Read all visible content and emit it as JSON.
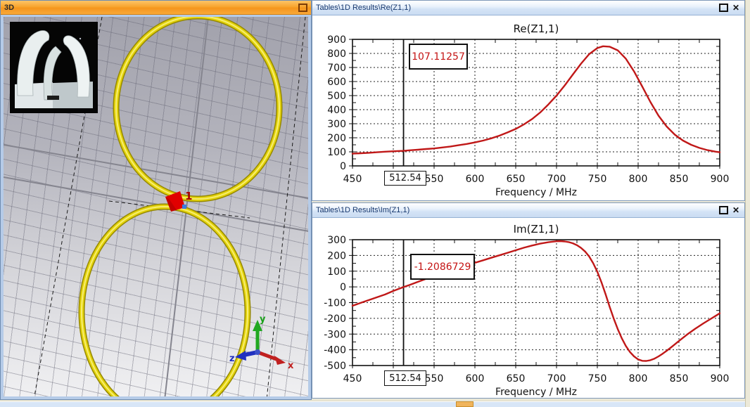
{
  "app": {
    "background_color": "#ece9d8"
  },
  "windows": {
    "viewport": {
      "title": "3D",
      "feed_port_label": "1",
      "axis_triad": {
        "x_label": "x",
        "y_label": "y",
        "z_label": "z"
      },
      "loop_color": "#e3d20a",
      "port_color": "#e00000"
    },
    "re_panel": {
      "title": "Tables\\1D Results\\Re(Z1,1)",
      "close_glyph": "✕"
    },
    "im_panel": {
      "title": "Tables\\1D Results\\Im(Z1,1)",
      "close_glyph": "✕"
    }
  },
  "chart_data": [
    {
      "type": "line",
      "title": "Re(Z1,1)",
      "xlabel": "Frequency / MHz",
      "xlim": [
        450,
        900
      ],
      "ylim": [
        0,
        900
      ],
      "x_ticks": [
        450,
        500,
        550,
        600,
        650,
        700,
        750,
        800,
        850,
        900
      ],
      "x_tick_labels": [
        "450",
        "",
        "550",
        "600",
        "650",
        "700",
        "750",
        "800",
        "850",
        "900"
      ],
      "x_minor_step": 25,
      "y_ticks": [
        0,
        100,
        200,
        300,
        400,
        500,
        600,
        700,
        800,
        900
      ],
      "y_minor_step": 50,
      "grid": true,
      "legend": "none",
      "marker": {
        "x": 512.54,
        "x_label": "512.54",
        "value_label": "107.11257"
      },
      "series": [
        {
          "name": "Re(Z1,1)",
          "color": "#c01818",
          "x": [
            450,
            460,
            470,
            480,
            490,
            500,
            512.54,
            520,
            530,
            540,
            550,
            560,
            570,
            580,
            590,
            600,
            610,
            620,
            630,
            640,
            650,
            660,
            670,
            680,
            690,
            700,
            710,
            720,
            730,
            740,
            750,
            757,
            765,
            775,
            785,
            795,
            805,
            815,
            825,
            835,
            845,
            855,
            865,
            875,
            885,
            895,
            900
          ],
          "y": [
            87,
            90,
            93,
            97,
            101,
            104,
            107.11,
            111,
            115,
            120,
            124,
            131,
            138,
            147,
            156,
            167,
            180,
            196,
            215,
            238,
            263,
            295,
            333,
            380,
            437,
            500,
            572,
            650,
            727,
            795,
            838,
            851,
            848,
            822,
            762,
            672,
            565,
            455,
            357,
            280,
            222,
            180,
            150,
            128,
            112,
            101,
            97
          ]
        }
      ]
    },
    {
      "type": "line",
      "title": "Im(Z1,1)",
      "xlabel": "Frequency / MHz",
      "xlim": [
        450,
        900
      ],
      "ylim": [
        -500,
        300
      ],
      "x_ticks": [
        450,
        500,
        550,
        600,
        650,
        700,
        750,
        800,
        850,
        900
      ],
      "x_tick_labels": [
        "450",
        "",
        "550",
        "600",
        "650",
        "700",
        "750",
        "800",
        "850",
        "900"
      ],
      "x_minor_step": 25,
      "y_ticks": [
        -500,
        -400,
        -300,
        -200,
        -100,
        0,
        100,
        200,
        300
      ],
      "y_minor_step": 50,
      "grid": true,
      "legend": "none",
      "marker": {
        "x": 512.54,
        "x_label": "512.54",
        "value_label": "-1.2086729"
      },
      "series": [
        {
          "name": "Im(Z1,1)",
          "color": "#c01818",
          "x": [
            450,
            460,
            470,
            480,
            490,
            500,
            512.54,
            520,
            530,
            540,
            550,
            560,
            570,
            580,
            590,
            600,
            610,
            620,
            630,
            640,
            650,
            660,
            670,
            680,
            690,
            700,
            705,
            710,
            715,
            720,
            725,
            730,
            735,
            740,
            745,
            750,
            755,
            760,
            765,
            770,
            775,
            780,
            785,
            790,
            795,
            800,
            805,
            810,
            815,
            820,
            825,
            830,
            835,
            840,
            845,
            850,
            860,
            870,
            880,
            890,
            900
          ],
          "y": [
            -120,
            -102,
            -84,
            -66,
            -48,
            -26,
            -1.21,
            12,
            32,
            51,
            69,
            87,
            104,
            121,
            137,
            153,
            169,
            185,
            201,
            217,
            233,
            249,
            263,
            275,
            284,
            290,
            291,
            289,
            285,
            277,
            265,
            248,
            225,
            193,
            150,
            96,
            30,
            -45,
            -125,
            -200,
            -268,
            -327,
            -376,
            -414,
            -442,
            -461,
            -470,
            -471,
            -466,
            -456,
            -442,
            -425,
            -406,
            -386,
            -365,
            -344,
            -303,
            -266,
            -232,
            -200,
            -168
          ]
        }
      ]
    }
  ]
}
